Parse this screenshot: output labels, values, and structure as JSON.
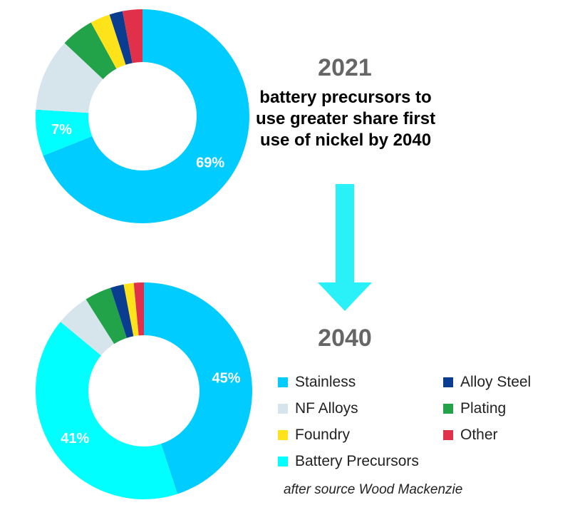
{
  "note": "battery precursors to use greater share first use of nickel by 2040",
  "credit": "after source Wood Mackenzie",
  "colors": {
    "stainless": "#00CCFF",
    "battery": "#00FFFF",
    "nf_alloys": "#D6E4EC",
    "plating": "#22A34A",
    "foundry": "#FFE31A",
    "alloy_steel": "#0A3D8F",
    "other": "#E0304A",
    "arrow": "#2AF0F8"
  },
  "legend": [
    {
      "label": "Stainless",
      "color": "#00CCFF"
    },
    {
      "label": "Alloy Steel",
      "color": "#0A3D8F"
    },
    {
      "label": "NF Alloys",
      "color": "#D6E4EC"
    },
    {
      "label": "Plating",
      "color": "#22A34A"
    },
    {
      "label": "Foundry",
      "color": "#FFE31A"
    },
    {
      "label": "Other",
      "color": "#E0304A"
    },
    {
      "label": "Battery Precursors",
      "color": "#00FFFF"
    }
  ],
  "chart_data": [
    {
      "type": "pie",
      "title": "2021",
      "donut": true,
      "slices": [
        {
          "name": "Stainless",
          "value": 69,
          "label": "69%",
          "color": "#00CCFF"
        },
        {
          "name": "Battery Precursors",
          "value": 7,
          "label": "7%",
          "color": "#00FFFF"
        },
        {
          "name": "NF Alloys",
          "value": 11,
          "label": "",
          "color": "#D6E4EC"
        },
        {
          "name": "Plating",
          "value": 5,
          "label": "",
          "color": "#22A34A"
        },
        {
          "name": "Foundry",
          "value": 3,
          "label": "",
          "color": "#FFE31A"
        },
        {
          "name": "Alloy Steel",
          "value": 2,
          "label": "",
          "color": "#0A3D8F"
        },
        {
          "name": "Other",
          "value": 3,
          "label": "",
          "color": "#E0304A"
        }
      ]
    },
    {
      "type": "pie",
      "title": "2040",
      "donut": true,
      "slices": [
        {
          "name": "Stainless",
          "value": 45,
          "label": "45%",
          "color": "#00CCFF"
        },
        {
          "name": "Battery Precursors",
          "value": 41,
          "label": "41%",
          "color": "#00FFFF"
        },
        {
          "name": "NF Alloys",
          "value": 5,
          "label": "",
          "color": "#D6E4EC"
        },
        {
          "name": "Plating",
          "value": 4,
          "label": "",
          "color": "#22A34A"
        },
        {
          "name": "Alloy Steel",
          "value": 2,
          "label": "",
          "color": "#0A3D8F"
        },
        {
          "name": "Foundry",
          "value": 1.5,
          "label": "",
          "color": "#FFE31A"
        },
        {
          "name": "Other",
          "value": 1.5,
          "label": "",
          "color": "#E0304A"
        }
      ]
    }
  ]
}
